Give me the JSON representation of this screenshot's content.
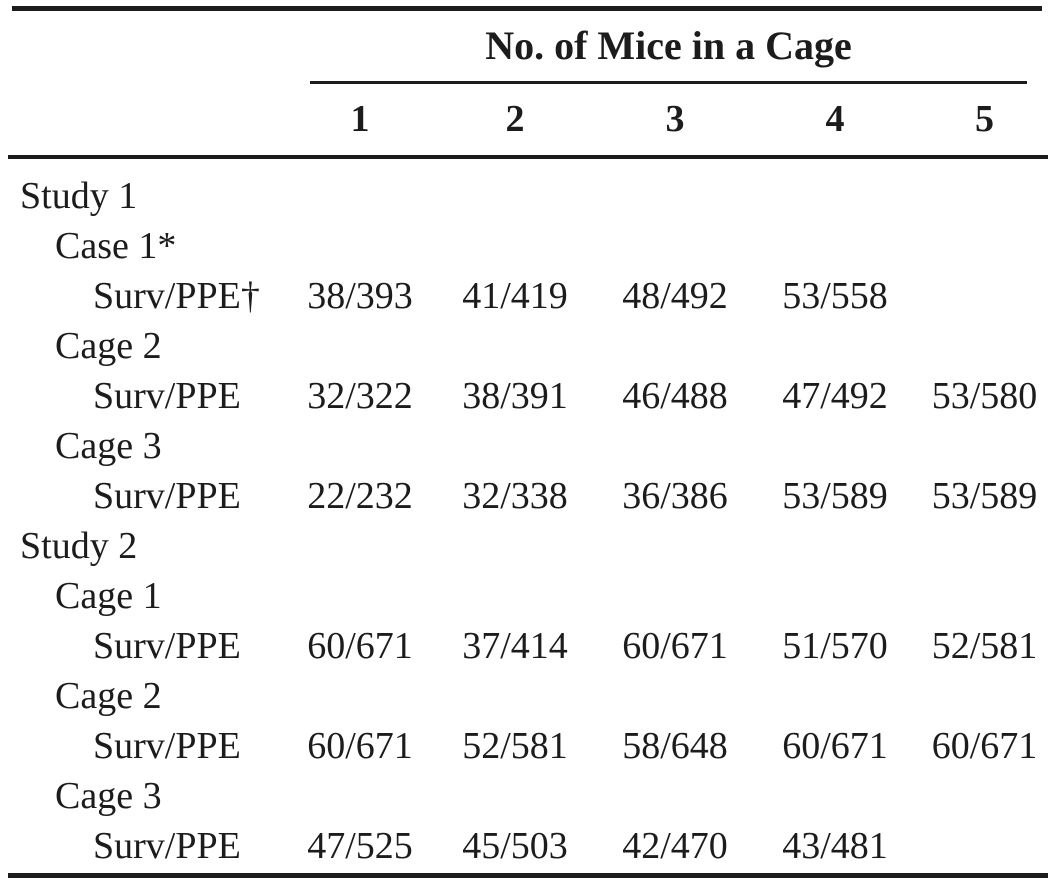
{
  "table": {
    "spanner_header": "No. of Mice in a Cage",
    "column_headers": [
      "1",
      "2",
      "3",
      "4",
      "5"
    ],
    "rows": [
      {
        "label": "Study 1",
        "indent": 0,
        "values": [
          "",
          "",
          "",
          "",
          ""
        ]
      },
      {
        "label": "Case 1*",
        "indent": 1,
        "values": [
          "",
          "",
          "",
          "",
          ""
        ]
      },
      {
        "label": "Surv/PPE†",
        "indent": 2,
        "values": [
          "38/393",
          "41/419",
          "48/492",
          "53/558",
          ""
        ]
      },
      {
        "label": "Cage 2",
        "indent": 1,
        "values": [
          "",
          "",
          "",
          "",
          ""
        ]
      },
      {
        "label": "Surv/PPE",
        "indent": 2,
        "values": [
          "32/322",
          "38/391",
          "46/488",
          "47/492",
          "53/580"
        ]
      },
      {
        "label": "Cage 3",
        "indent": 1,
        "values": [
          "",
          "",
          "",
          "",
          ""
        ]
      },
      {
        "label": "Surv/PPE",
        "indent": 2,
        "values": [
          "22/232",
          "32/338",
          "36/386",
          "53/589",
          "53/589"
        ]
      },
      {
        "label": "Study 2",
        "indent": 0,
        "values": [
          "",
          "",
          "",
          "",
          ""
        ]
      },
      {
        "label": "Cage 1",
        "indent": 1,
        "values": [
          "",
          "",
          "",
          "",
          ""
        ]
      },
      {
        "label": "Surv/PPE",
        "indent": 2,
        "values": [
          "60/671",
          "37/414",
          "60/671",
          "51/570",
          "52/581"
        ]
      },
      {
        "label": "Cage 2",
        "indent": 1,
        "values": [
          "",
          "",
          "",
          "",
          ""
        ]
      },
      {
        "label": "Surv/PPE",
        "indent": 2,
        "values": [
          "60/671",
          "52/581",
          "58/648",
          "60/671",
          "60/671"
        ]
      },
      {
        "label": "Cage 3",
        "indent": 1,
        "values": [
          "",
          "",
          "",
          "",
          ""
        ]
      },
      {
        "label": "Surv/PPE",
        "indent": 2,
        "values": [
          "47/525",
          "45/503",
          "42/470",
          "43/481",
          ""
        ]
      }
    ],
    "text_color": "#1c1c1c",
    "background_color": "#ffffff"
  }
}
